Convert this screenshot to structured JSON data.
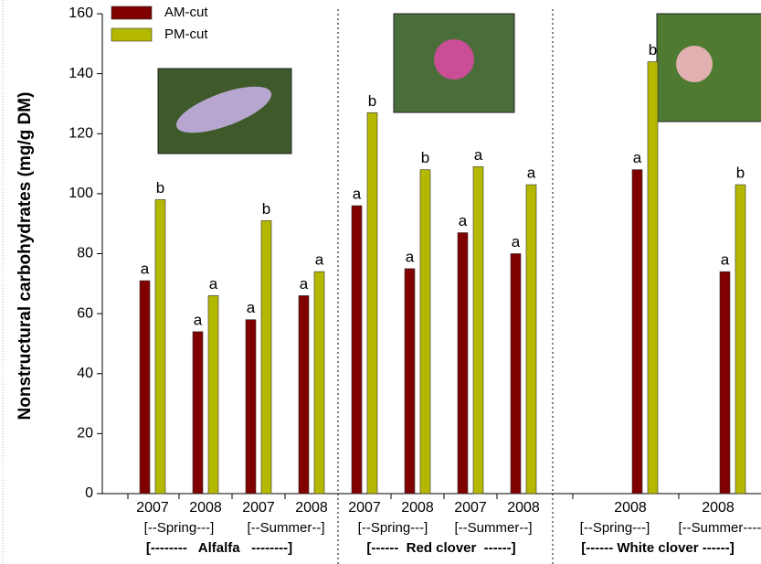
{
  "chart_data": {
    "type": "bar",
    "y_label": "Nonstructural carbohydrates (mg/g DM)",
    "categories": [
      "2007",
      "2008",
      "2007",
      "2008",
      "2007",
      "2008",
      "2007",
      "2008",
      "2008",
      "2008"
    ],
    "series": [
      {
        "name": "AM-cut",
        "color": "#800000",
        "values": [
          71,
          54,
          58,
          66,
          96,
          75,
          87,
          80,
          108,
          74
        ],
        "letters": [
          "a",
          "a",
          "a",
          "a",
          "a",
          "a",
          "a",
          "a",
          "a",
          "a"
        ]
      },
      {
        "name": "PM-cut",
        "color": "#b5b800",
        "values": [
          98,
          66,
          91,
          74,
          127,
          108,
          109,
          103,
          144,
          103
        ],
        "letters": [
          "b",
          "a",
          "b",
          "a",
          "b",
          "b",
          "a",
          "a",
          "b",
          "b"
        ]
      }
    ],
    "season_labels": [
      "[--Spring---]",
      "[--Summer--]",
      "[--Spring---]",
      "[--Summer--]",
      "[--Spring---]",
      "[--Summer----]"
    ],
    "species_labels": [
      "[--------   Alfalfa   --------]",
      "[------  Red clover  ------]",
      "[------ White clover ------]"
    ],
    "ylim": [
      0,
      160
    ],
    "yticks": [
      0,
      20,
      40,
      60,
      80,
      100,
      120,
      140,
      160
    ]
  }
}
